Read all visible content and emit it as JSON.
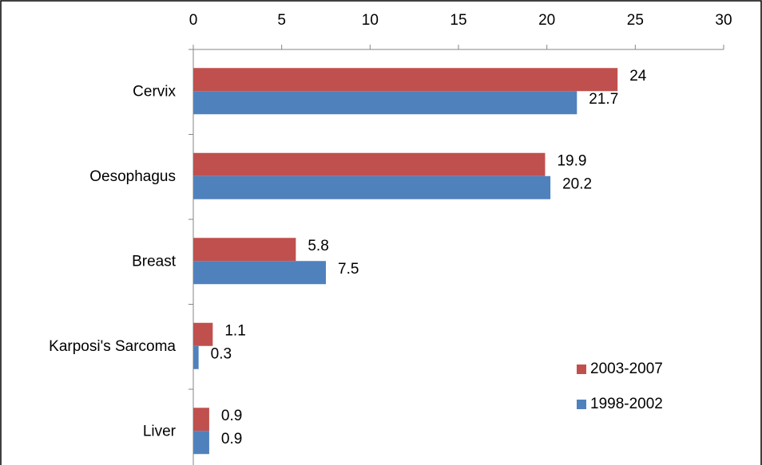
{
  "chart_data": {
    "type": "bar",
    "orientation": "horizontal",
    "x_axis_position": "top",
    "categories": [
      "Cervix",
      "Oesophagus",
      "Breast",
      "Karposi's Sarcoma",
      "Liver"
    ],
    "series": [
      {
        "name": "2003-2007",
        "color": "#c0504d",
        "values": [
          24,
          19.9,
          5.8,
          1.1,
          0.9
        ]
      },
      {
        "name": "1998-2002",
        "color": "#4f81bd",
        "values": [
          21.7,
          20.2,
          7.5,
          0.3,
          0.9
        ]
      }
    ],
    "xlim": [
      0,
      30
    ],
    "xticks": [
      0,
      5,
      10,
      15,
      20,
      25,
      30
    ],
    "grid": false,
    "legend": "lower right"
  }
}
